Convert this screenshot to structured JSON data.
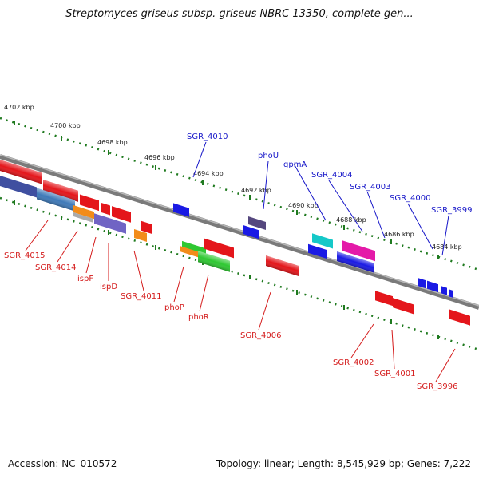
{
  "title": "Streptomyces griseus subsp. griseus NBRC 13350, complete gen...",
  "footer": {
    "accession": "Accession: NC_010572",
    "summary": "Topology: linear; Length: 8,545,929 bp; Genes: 7,222"
  },
  "ruler_labels": [
    "4702 kbp",
    "4700 kbp",
    "4698 kbp",
    "4696 kbp",
    "4694 kbp",
    "4692 kbp",
    "4690 kbp",
    "4688 kbp",
    "4686 kbp",
    "4684 kbp"
  ],
  "genes_top": [
    "SGR_4010",
    "phoU",
    "gpmA",
    "SGR_4004",
    "SGR_4003",
    "SGR_4000",
    "SGR_3999"
  ],
  "genes_bottom": [
    "SGR_4015",
    "SGR_4014",
    "ispF",
    "ispD",
    "SGR_4011",
    "phoP",
    "phoR",
    "SGR_4006",
    "SGR_4002",
    "SGR_4001",
    "SGR_3996"
  ],
  "colors": {
    "top_label": "#1515c8",
    "bottom_label": "#d41a1a",
    "ruler_tick": "#1f7a1f",
    "backbone": "#808080"
  }
}
